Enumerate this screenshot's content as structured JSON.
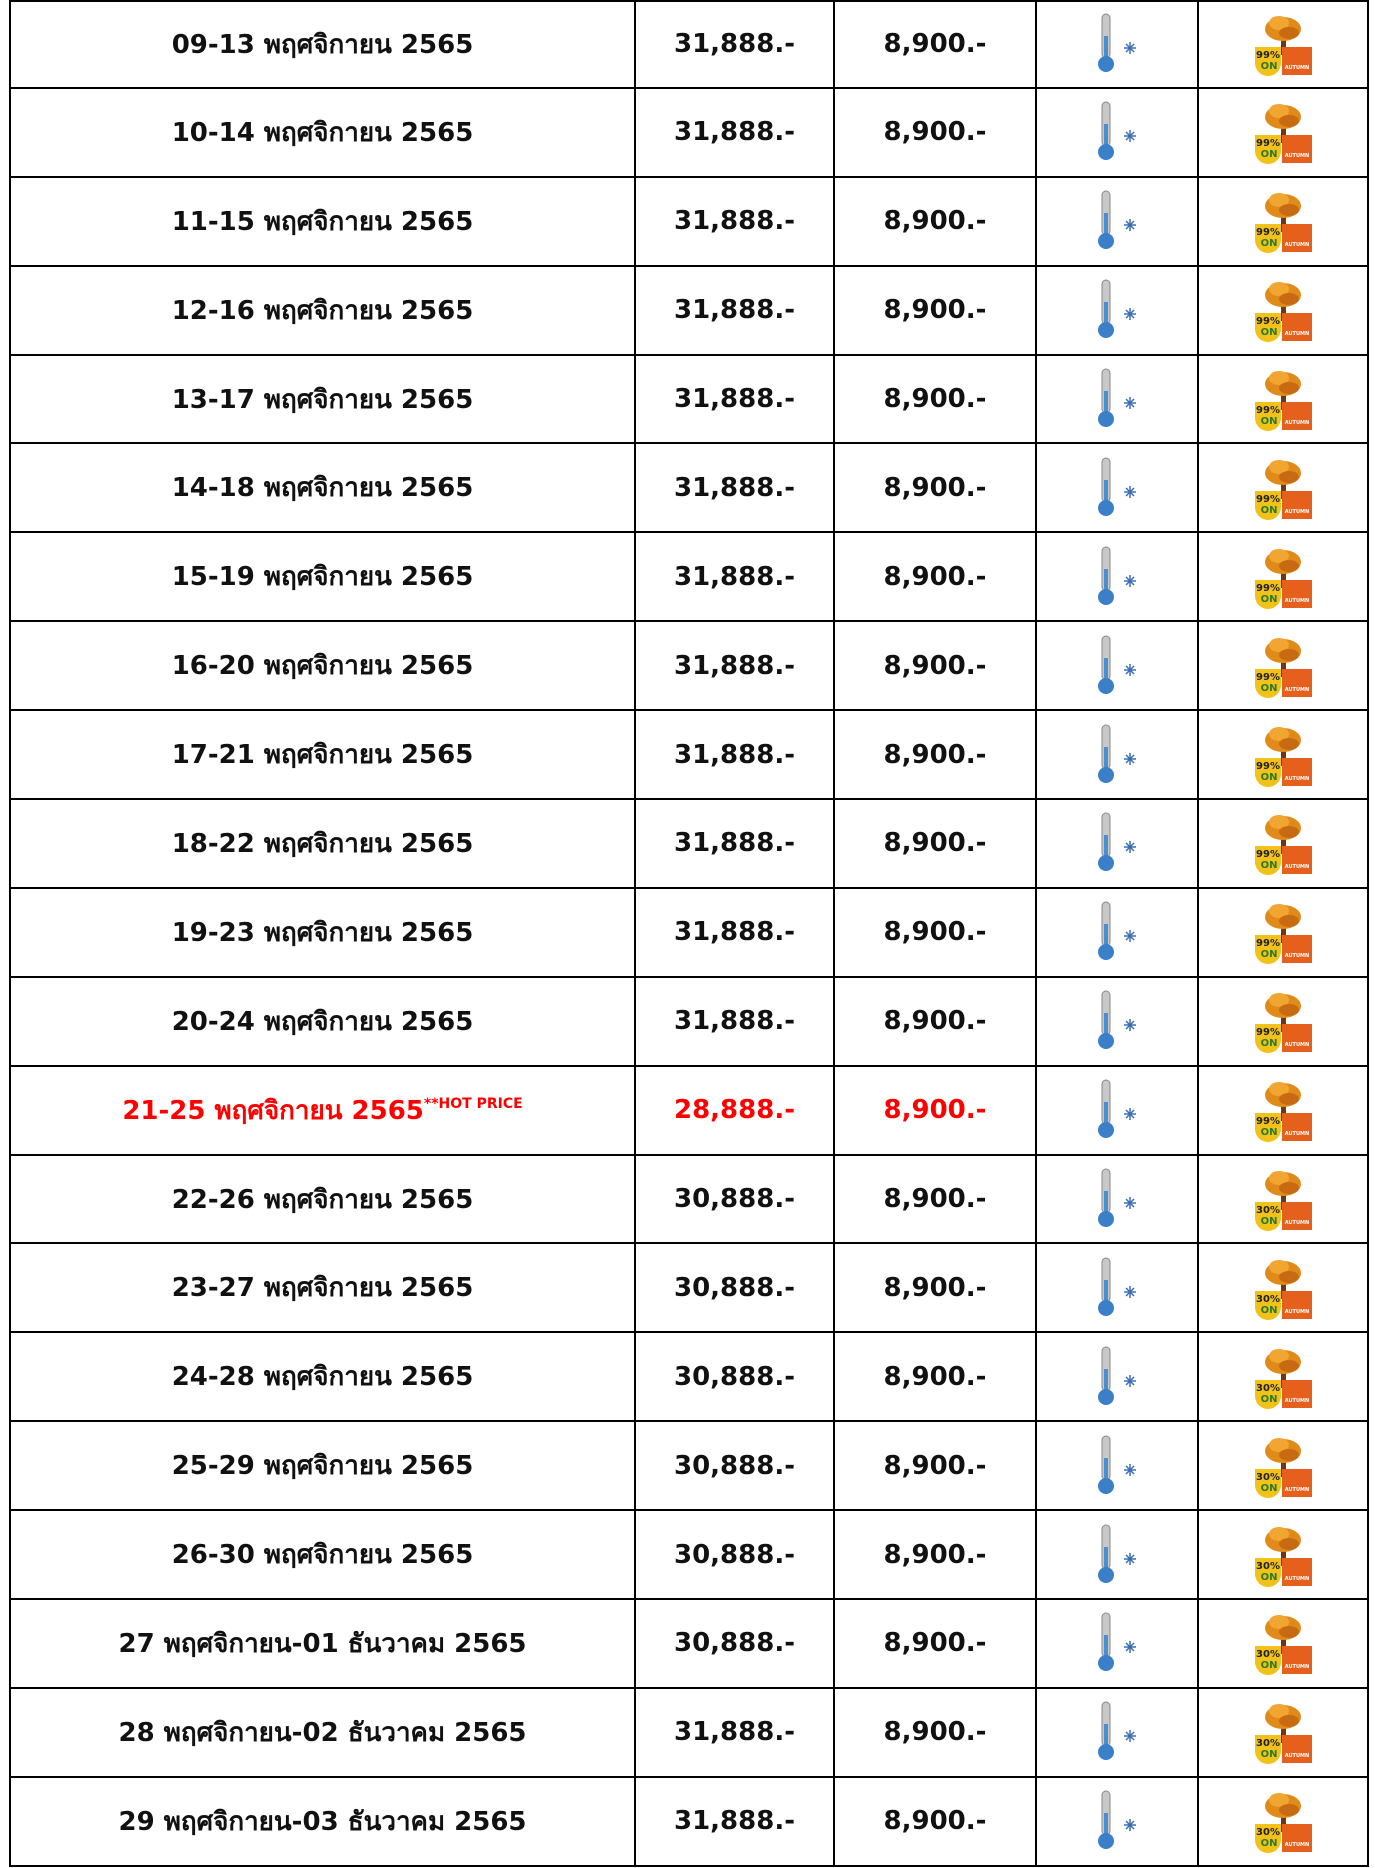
{
  "table": {
    "note": "**HOT PRICE",
    "badge_on": "ON",
    "badge_label": "AUTUMN",
    "rows": [
      {
        "date": "09-13 พฤศจิกายน 2565",
        "price": "31,888.-",
        "single": "8,900.-",
        "badge": "99%"
      },
      {
        "date": "10-14 พฤศจิกายน 2565",
        "price": "31,888.-",
        "single": "8,900.-",
        "badge": "99%"
      },
      {
        "date": "11-15 พฤศจิกายน 2565",
        "price": "31,888.-",
        "single": "8,900.-",
        "badge": "99%"
      },
      {
        "date": "12-16 พฤศจิกายน 2565",
        "price": "31,888.-",
        "single": "8,900.-",
        "badge": "99%"
      },
      {
        "date": "13-17 พฤศจิกายน 2565",
        "price": "31,888.-",
        "single": "8,900.-",
        "badge": "99%"
      },
      {
        "date": "14-18 พฤศจิกายน 2565",
        "price": "31,888.-",
        "single": "8,900.-",
        "badge": "99%"
      },
      {
        "date": "15-19 พฤศจิกายน 2565",
        "price": "31,888.-",
        "single": "8,900.-",
        "badge": "99%"
      },
      {
        "date": "16-20 พฤศจิกายน 2565",
        "price": "31,888.-",
        "single": "8,900.-",
        "badge": "99%"
      },
      {
        "date": "17-21 พฤศจิกายน 2565",
        "price": "31,888.-",
        "single": "8,900.-",
        "badge": "99%"
      },
      {
        "date": "18-22 พฤศจิกายน 2565",
        "price": "31,888.-",
        "single": "8,900.-",
        "badge": "99%"
      },
      {
        "date": "19-23 พฤศจิกายน 2565",
        "price": "31,888.-",
        "single": "8,900.-",
        "badge": "99%"
      },
      {
        "date": "20-24 พฤศจิกายน 2565",
        "price": "31,888.-",
        "single": "8,900.-",
        "badge": "99%"
      },
      {
        "date": "21-25 พฤศจิกายน 2565",
        "price": "28,888.-",
        "single": "8,900.-",
        "badge": "99%",
        "hot": true
      },
      {
        "date": "22-26 พฤศจิกายน 2565",
        "price": "30,888.-",
        "single": "8,900.-",
        "badge": "30%"
      },
      {
        "date": "23-27 พฤศจิกายน 2565",
        "price": "30,888.-",
        "single": "8,900.-",
        "badge": "30%"
      },
      {
        "date": "24-28 พฤศจิกายน 2565",
        "price": "30,888.-",
        "single": "8,900.-",
        "badge": "30%"
      },
      {
        "date": "25-29 พฤศจิกายน 2565",
        "price": "30,888.-",
        "single": "8,900.-",
        "badge": "30%"
      },
      {
        "date": "26-30 พฤศจิกายน 2565",
        "price": "30,888.-",
        "single": "8,900.-",
        "badge": "30%"
      },
      {
        "date": "27 พฤศจิกายน-01 ธันวาคม 2565",
        "price": "30,888.-",
        "single": "8,900.-",
        "badge": "30%"
      },
      {
        "date": "28 พฤศจิกายน-02 ธันวาคม 2565",
        "price": "31,888.-",
        "single": "8,900.-",
        "badge": "30%"
      },
      {
        "date": "29 พฤศจิกายน-03 ธันวาคม 2565",
        "price": "31,888.-",
        "single": "8,900.-",
        "badge": "30%"
      }
    ]
  }
}
